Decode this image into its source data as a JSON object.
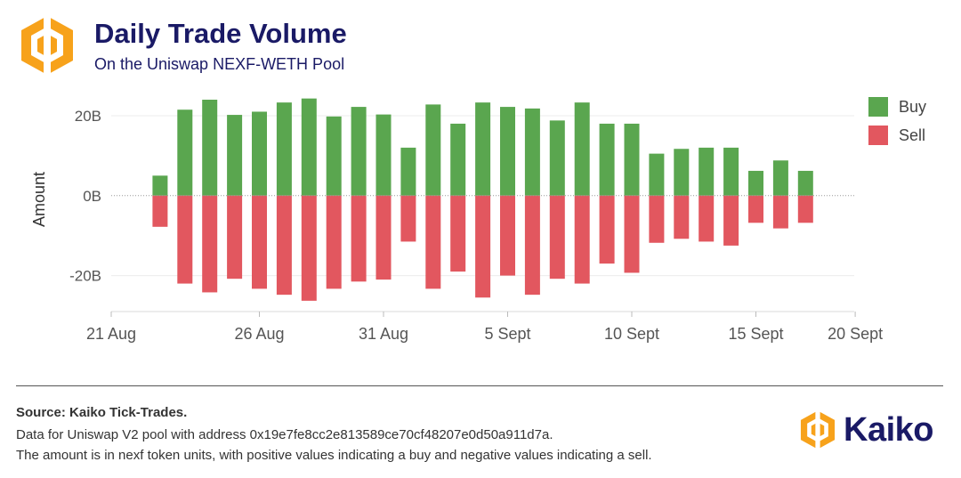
{
  "header": {
    "title": "Daily Trade Volume",
    "subtitle": "On the Uniswap NEXF-WETH Pool"
  },
  "colors": {
    "buy": "#5aa64f",
    "sell": "#e2575f",
    "title": "#1a1a66",
    "logo_orange": "#f7a21b"
  },
  "chart_data": {
    "type": "bar",
    "ylabel": "Amount",
    "ylim": [
      -29,
      24
    ],
    "yticks": [
      -20,
      0,
      20
    ],
    "ytick_labels": [
      "-20B",
      "0B",
      "20B"
    ],
    "xtick_labels": [
      "21 Aug",
      "26 Aug",
      "31 Aug",
      "5 Sept",
      "10 Sept",
      "15 Sept",
      "20 Sept"
    ],
    "xtick_day_index": [
      0,
      5,
      10,
      15,
      20,
      25,
      29
    ],
    "x_day_index": [
      1,
      2,
      3,
      4,
      5,
      6,
      7,
      8,
      9,
      10,
      11,
      12,
      13,
      14,
      15,
      16,
      17,
      18,
      19,
      20,
      21,
      22,
      23,
      24,
      25,
      26,
      27,
      28
    ],
    "series": [
      {
        "name": "Buy",
        "values": [
          5.0,
          21.5,
          24.0,
          20.2,
          21.0,
          23.3,
          24.3,
          19.8,
          22.2,
          20.3,
          12.0,
          22.8,
          18.0,
          23.3,
          22.2,
          21.8,
          18.8,
          23.3,
          18.0,
          18.0,
          10.5,
          11.7,
          12.0,
          12.0,
          6.2,
          8.8,
          6.2
        ],
        "values_full": [
          5.0,
          21.5,
          24.0,
          20.2,
          21.0,
          23.3,
          24.3,
          19.8,
          22.2,
          20.3,
          12.0,
          22.8,
          18.0,
          23.3,
          22.2,
          21.8,
          18.8,
          23.3,
          18.0,
          18.0,
          10.5,
          11.7,
          12.0,
          12.0,
          6.2,
          8.8,
          6.2
        ]
      },
      {
        "name": "Sell",
        "values": [
          -7.8,
          -22.0,
          -24.2,
          -20.8,
          -23.3,
          -24.8,
          -26.3,
          -23.3,
          -21.5,
          -21.0,
          -11.5,
          -23.3,
          -19.0,
          -25.5,
          -20.0,
          -24.8,
          -20.8,
          -22.0,
          -17.0,
          -19.3,
          -11.8,
          -10.8,
          -11.5,
          -12.5,
          -6.8,
          -8.2,
          -6.8
        ]
      }
    ],
    "bar_day_index": [
      1,
      2,
      3,
      4,
      5,
      6,
      7,
      8,
      9,
      10,
      11,
      12,
      13,
      14,
      15,
      16,
      17,
      18,
      19,
      20,
      21,
      22,
      23,
      24,
      25,
      26,
      27
    ],
    "legend_position": "right",
    "grid": true
  },
  "footer": {
    "source": "Source: Kaiko Tick-Trades.",
    "note1": "Data for Uniswap V2 pool with address 0x19e7fe8cc2e813589ce70cf48207e0d50a911d7a.",
    "note2": "The amount is in nexf token units, with positive values indicating a buy and negative values indicating a sell.",
    "brand": "Kaiko"
  }
}
